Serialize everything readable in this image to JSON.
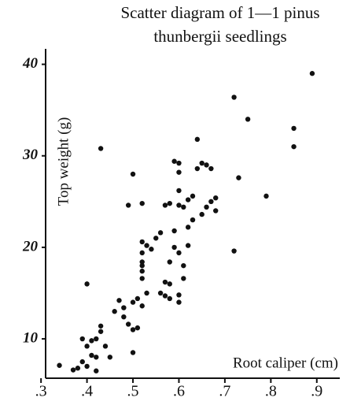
{
  "chart_data": {
    "type": "scatter",
    "title": [
      "Scatter diagram of 1—1 pinus",
      "thunbergii    seedlings"
    ],
    "x_label": "Root caliper (cm)",
    "y_label": "Top weight (g)",
    "color": "#111111",
    "xlim": [
      0.31,
      0.95
    ],
    "ylim": [
      5.7,
      41
    ],
    "xticks": [
      {
        "value": 0.3,
        "label": ".3"
      },
      {
        "value": 0.4,
        "label": ".4"
      },
      {
        "value": 0.5,
        "label": ".5"
      },
      {
        "value": 0.6,
        "label": ".6"
      },
      {
        "value": 0.7,
        "label": ".7"
      },
      {
        "value": 0.8,
        "label": ".8"
      },
      {
        "value": 0.9,
        "label": ".9"
      }
    ],
    "yticks": [
      10,
      20,
      30,
      40
    ],
    "x": [
      0.34,
      0.37,
      0.38,
      0.39,
      0.39,
      0.4,
      0.4,
      0.4,
      0.41,
      0.41,
      0.42,
      0.42,
      0.42,
      0.43,
      0.43,
      0.43,
      0.44,
      0.45,
      0.46,
      0.47,
      0.48,
      0.48,
      0.49,
      0.49,
      0.5,
      0.5,
      0.5,
      0.5,
      0.51,
      0.51,
      0.52,
      0.52,
      0.52,
      0.52,
      0.52,
      0.52,
      0.52,
      0.52,
      0.53,
      0.53,
      0.54,
      0.55,
      0.56,
      0.56,
      0.57,
      0.57,
      0.57,
      0.58,
      0.58,
      0.58,
      0.58,
      0.59,
      0.59,
      0.59,
      0.6,
      0.6,
      0.6,
      0.6,
      0.6,
      0.6,
      0.6,
      0.61,
      0.61,
      0.61,
      0.62,
      0.62,
      0.62,
      0.63,
      0.63,
      0.64,
      0.64,
      0.65,
      0.65,
      0.66,
      0.66,
      0.67,
      0.67,
      0.68,
      0.68,
      0.72,
      0.72,
      0.73,
      0.75,
      0.79,
      0.85,
      0.85,
      0.89
    ],
    "values": [
      7.1,
      6.6,
      6.8,
      7.5,
      10.0,
      9.2,
      16.0,
      7.0,
      8.2,
      9.8,
      8.0,
      10.0,
      6.5,
      10.8,
      11.4,
      30.8,
      9.2,
      8.0,
      13.0,
      14.2,
      13.4,
      12.4,
      24.6,
      11.6,
      28.0,
      11.0,
      14.0,
      8.5,
      11.2,
      14.4,
      18.4,
      17.4,
      20.6,
      16.6,
      18.0,
      19.4,
      13.6,
      24.8,
      15.0,
      20.2,
      19.8,
      21.0,
      21.6,
      15.0,
      14.7,
      16.2,
      24.6,
      16.0,
      18.4,
      24.8,
      14.4,
      20.0,
      21.8,
      29.4,
      19.4,
      14.8,
      24.6,
      26.2,
      28.2,
      29.2,
      14.0,
      24.4,
      18.0,
      16.6,
      25.2,
      22.2,
      20.2,
      25.6,
      23.0,
      28.6,
      31.8,
      23.6,
      29.2,
      29.0,
      24.4,
      28.6,
      25.0,
      25.4,
      24.0,
      36.4,
      19.6,
      27.6,
      34.0,
      25.6,
      33.0,
      31.0,
      39.0
    ]
  }
}
